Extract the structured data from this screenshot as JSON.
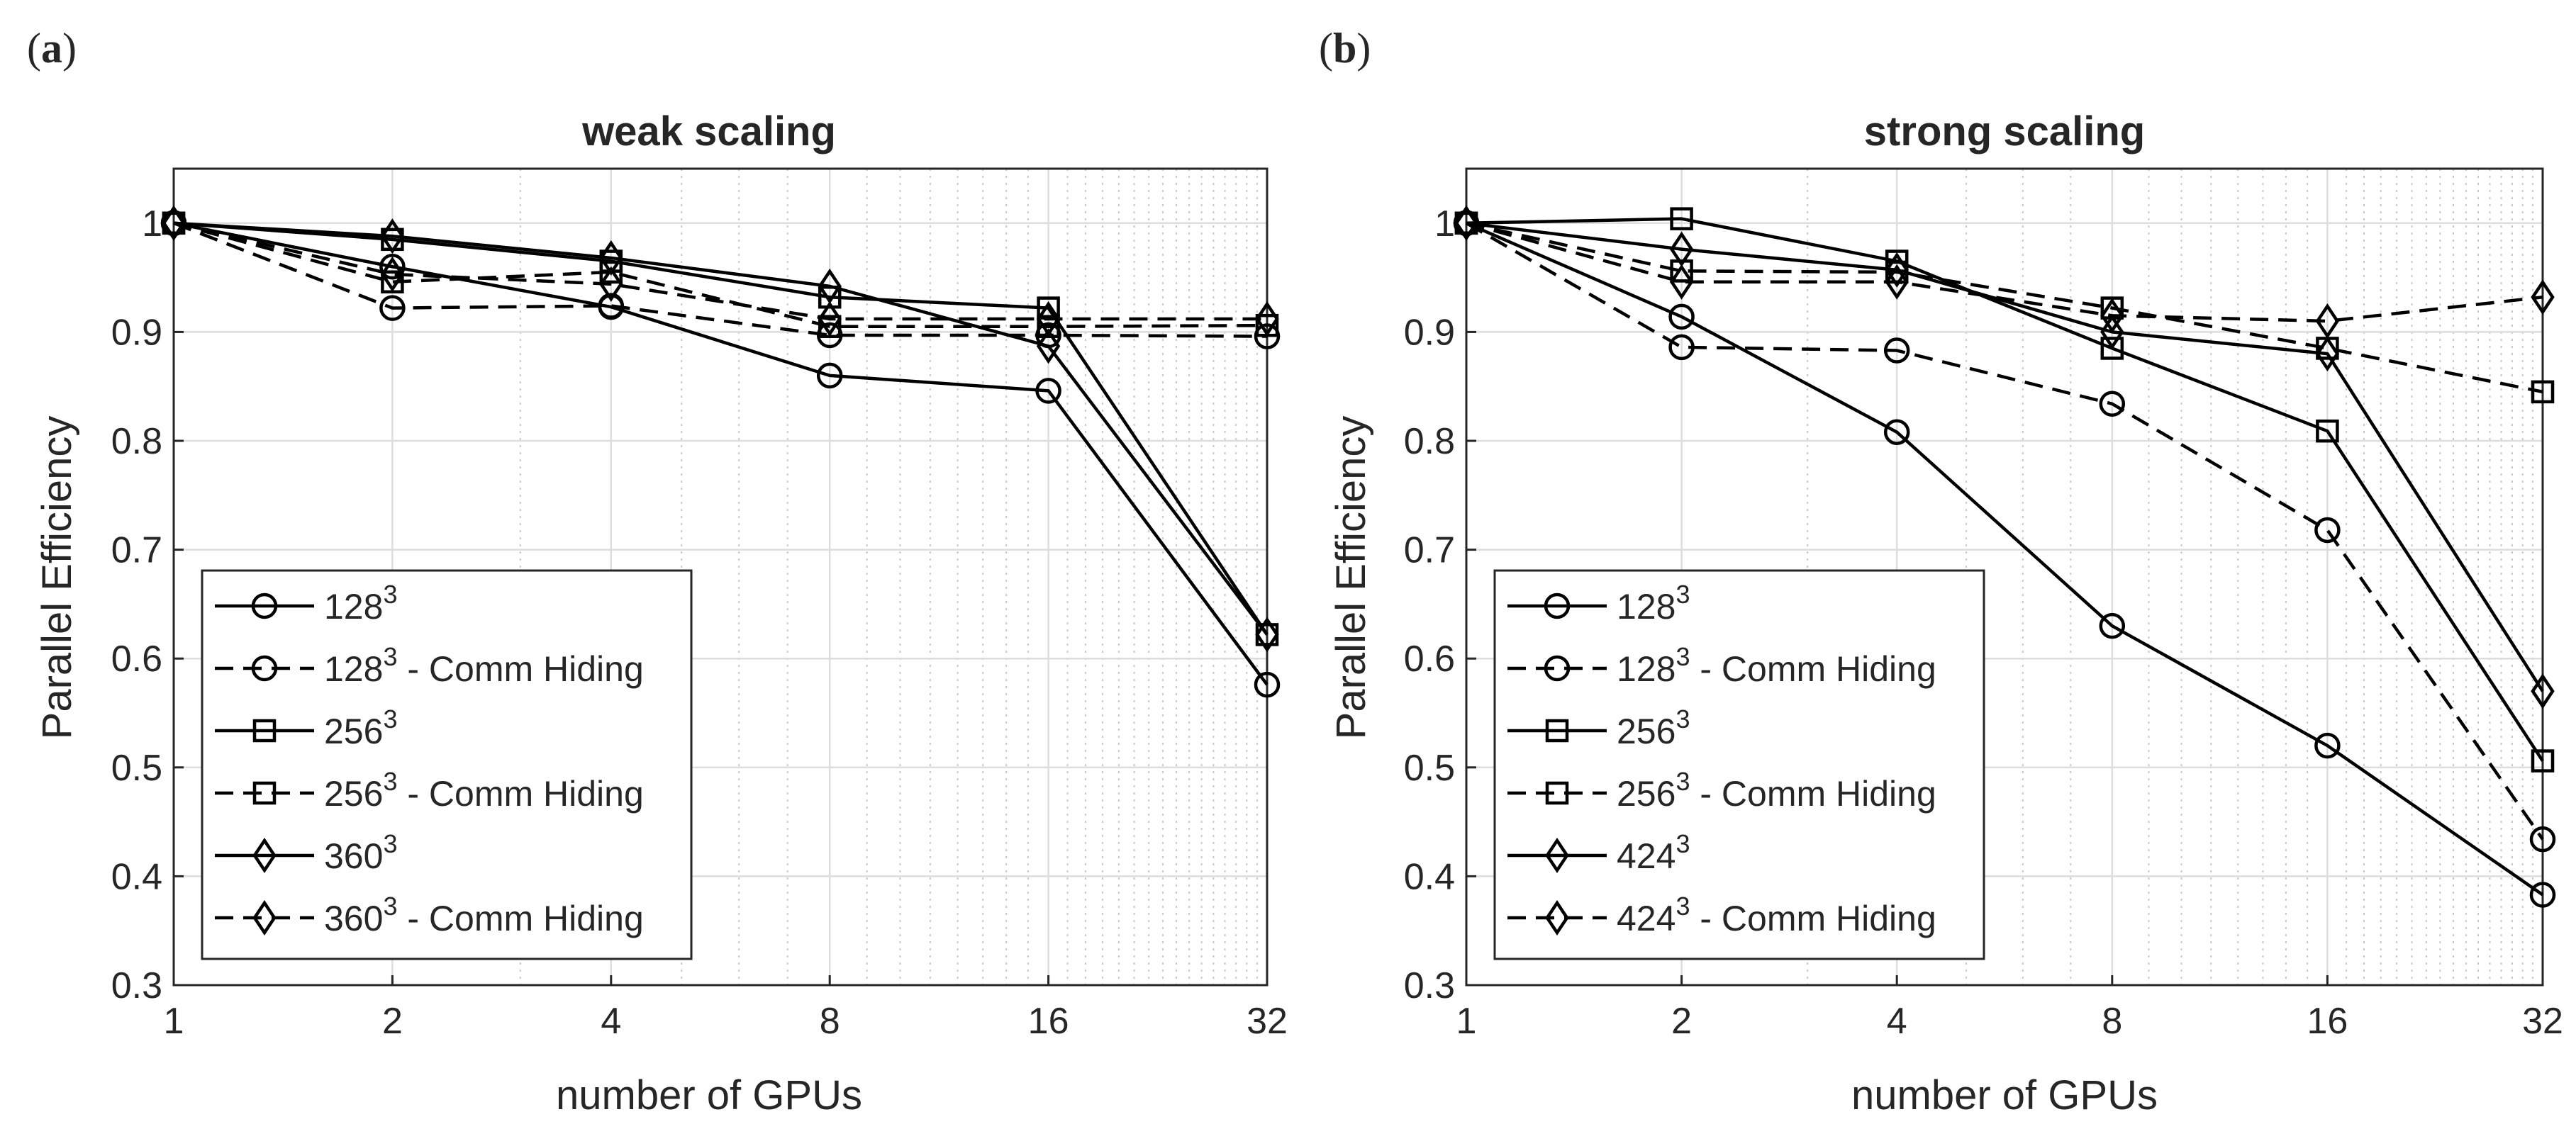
{
  "figure": {
    "panels": [
      {
        "label_open": "(",
        "label_letter": "a",
        "label_close": ")"
      },
      {
        "label_open": "(",
        "label_letter": "b",
        "label_close": ")"
      }
    ]
  },
  "styles": {
    "axis_color": "#262626",
    "grid_color": "#dddddd",
    "line_color": "#000000",
    "background": "#ffffff"
  },
  "chart_data": [
    {
      "type": "line",
      "title": "weak scaling",
      "xlabel": "number of GPUs",
      "ylabel": "Parallel Efficiency",
      "xscale": "log2",
      "x": [
        1,
        2,
        4,
        8,
        16,
        32
      ],
      "xticks": [
        "1",
        "2",
        "4",
        "8",
        "16",
        "32"
      ],
      "xlim": [
        1,
        32
      ],
      "ylim": [
        0.3,
        1.05
      ],
      "yticks": [
        "0.3",
        "0.4",
        "0.5",
        "0.6",
        "0.7",
        "0.8",
        "0.9",
        "1"
      ],
      "grid": true,
      "legend_position": "bottom-left",
      "series": [
        {
          "name": "128",
          "sup": "3",
          "suffix": "",
          "marker": "circle",
          "dash": "solid",
          "values": [
            1.0,
            0.96,
            0.923,
            0.86,
            0.846,
            0.576
          ]
        },
        {
          "name": "128",
          "sup": "3",
          "suffix": " - Comm Hiding",
          "marker": "circle",
          "dash": "dashed",
          "values": [
            1.0,
            0.922,
            0.924,
            0.897,
            0.897,
            0.896
          ]
        },
        {
          "name": "256",
          "sup": "3",
          "suffix": "",
          "marker": "square",
          "dash": "solid",
          "values": [
            1.0,
            0.985,
            0.965,
            0.932,
            0.922,
            0.622
          ]
        },
        {
          "name": "256",
          "sup": "3",
          "suffix": " - Comm Hiding",
          "marker": "square",
          "dash": "dashed",
          "values": [
            1.0,
            0.946,
            0.955,
            0.905,
            0.905,
            0.906
          ]
        },
        {
          "name": "360",
          "sup": "3",
          "suffix": "",
          "marker": "diamond",
          "dash": "solid",
          "values": [
            1.0,
            0.988,
            0.968,
            0.942,
            0.887,
            0.622
          ]
        },
        {
          "name": "360",
          "sup": "3",
          "suffix": " - Comm Hiding",
          "marker": "diamond",
          "dash": "dashed",
          "values": [
            1.0,
            0.953,
            0.944,
            0.912,
            0.912,
            0.912
          ]
        }
      ]
    },
    {
      "type": "line",
      "title": "strong scaling",
      "xlabel": "number of GPUs",
      "ylabel": "Parallel Efficiency",
      "xscale": "log2",
      "x": [
        1,
        2,
        4,
        8,
        16,
        32
      ],
      "xticks": [
        "1",
        "2",
        "4",
        "8",
        "16",
        "32"
      ],
      "xlim": [
        1,
        32
      ],
      "ylim": [
        0.3,
        1.05
      ],
      "yticks": [
        "0.3",
        "0.4",
        "0.5",
        "0.6",
        "0.7",
        "0.8",
        "0.9",
        "1"
      ],
      "grid": true,
      "legend_position": "bottom-left",
      "series": [
        {
          "name": "128",
          "sup": "3",
          "suffix": "",
          "marker": "circle",
          "dash": "solid",
          "values": [
            1.0,
            0.914,
            0.808,
            0.63,
            0.52,
            0.383
          ]
        },
        {
          "name": "128",
          "sup": "3",
          "suffix": " - Comm Hiding",
          "marker": "circle",
          "dash": "dashed",
          "values": [
            1.0,
            0.886,
            0.883,
            0.834,
            0.718,
            0.434
          ]
        },
        {
          "name": "256",
          "sup": "3",
          "suffix": "",
          "marker": "square",
          "dash": "solid",
          "values": [
            1.0,
            1.004,
            0.965,
            0.885,
            0.809,
            0.506
          ]
        },
        {
          "name": "256",
          "sup": "3",
          "suffix": " - Comm Hiding",
          "marker": "square",
          "dash": "dashed",
          "values": [
            1.0,
            0.956,
            0.955,
            0.922,
            0.885,
            0.845
          ]
        },
        {
          "name": "424",
          "sup": "3",
          "suffix": "",
          "marker": "diamond",
          "dash": "solid",
          "values": [
            1.0,
            0.976,
            0.957,
            0.9,
            0.88,
            0.57
          ]
        },
        {
          "name": "424",
          "sup": "3",
          "suffix": " - Comm Hiding",
          "marker": "diamond",
          "dash": "dashed",
          "values": [
            1.0,
            0.946,
            0.946,
            0.915,
            0.91,
            0.932
          ]
        }
      ]
    }
  ]
}
